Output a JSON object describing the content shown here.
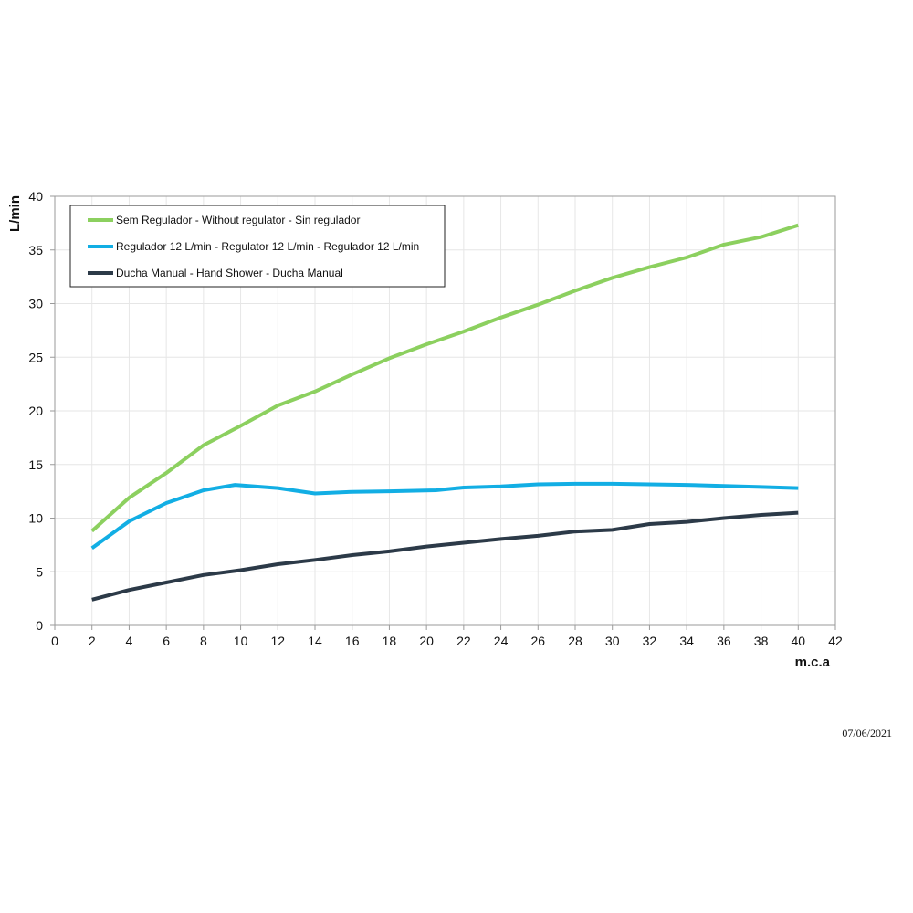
{
  "chart_data": {
    "type": "line",
    "title": "",
    "xlabel": "m.c.a",
    "ylabel": "L/min",
    "xlim": [
      0,
      42
    ],
    "ylim": [
      0,
      40
    ],
    "xticks": [
      0,
      2,
      4,
      6,
      8,
      10,
      12,
      14,
      16,
      18,
      20,
      22,
      24,
      26,
      28,
      30,
      32,
      34,
      36,
      38,
      40,
      42
    ],
    "yticks": [
      0,
      5,
      10,
      15,
      20,
      25,
      30,
      35,
      40
    ],
    "grid": true,
    "legend_position": "top-left",
    "series": [
      {
        "name": "Sem Regulador - Without regulator - Sin regulador",
        "color": "#8cd05f",
        "points": [
          [
            2,
            8.8
          ],
          [
            4,
            11.9
          ],
          [
            6,
            14.2
          ],
          [
            8,
            16.8
          ],
          [
            10,
            18.6
          ],
          [
            12,
            20.5
          ],
          [
            14,
            21.8
          ],
          [
            16,
            23.4
          ],
          [
            18,
            24.9
          ],
          [
            20,
            26.2
          ],
          [
            22,
            27.4
          ],
          [
            24,
            28.7
          ],
          [
            26,
            29.9
          ],
          [
            28,
            31.2
          ],
          [
            30,
            32.4
          ],
          [
            32,
            33.4
          ],
          [
            34,
            34.3
          ],
          [
            36,
            35.5
          ],
          [
            38,
            36.2
          ],
          [
            40,
            37.3
          ]
        ]
      },
      {
        "name": "Regulador 12 L/min - Regulator 12 L/min - Regulador 12 L/min",
        "color": "#12aee4",
        "points": [
          [
            2,
            7.2
          ],
          [
            4,
            9.7
          ],
          [
            6,
            11.4
          ],
          [
            8,
            12.6
          ],
          [
            9.7,
            13.1
          ],
          [
            12,
            12.8
          ],
          [
            14,
            12.3
          ],
          [
            16,
            12.45
          ],
          [
            18,
            12.5
          ],
          [
            20.5,
            12.6
          ],
          [
            22,
            12.85
          ],
          [
            24,
            12.95
          ],
          [
            26,
            13.15
          ],
          [
            28,
            13.2
          ],
          [
            30,
            13.2
          ],
          [
            32,
            13.15
          ],
          [
            34,
            13.1
          ],
          [
            36,
            13.0
          ],
          [
            38,
            12.9
          ],
          [
            40,
            12.8
          ]
        ]
      },
      {
        "name": "Ducha Manual - Hand Shower - Ducha Manual",
        "color": "#2c3a48",
        "points": [
          [
            2,
            2.4
          ],
          [
            4,
            3.3
          ],
          [
            6,
            4.0
          ],
          [
            8,
            4.7
          ],
          [
            10,
            5.15
          ],
          [
            12,
            5.7
          ],
          [
            14,
            6.1
          ],
          [
            16,
            6.55
          ],
          [
            18,
            6.9
          ],
          [
            20,
            7.35
          ],
          [
            22,
            7.7
          ],
          [
            24,
            8.05
          ],
          [
            26,
            8.35
          ],
          [
            28,
            8.75
          ],
          [
            30,
            8.9
          ],
          [
            32,
            9.45
          ],
          [
            34,
            9.65
          ],
          [
            36,
            10.0
          ],
          [
            38,
            10.3
          ],
          [
            40,
            10.5
          ]
        ]
      }
    ],
    "footer_date": "07/06/2021"
  }
}
